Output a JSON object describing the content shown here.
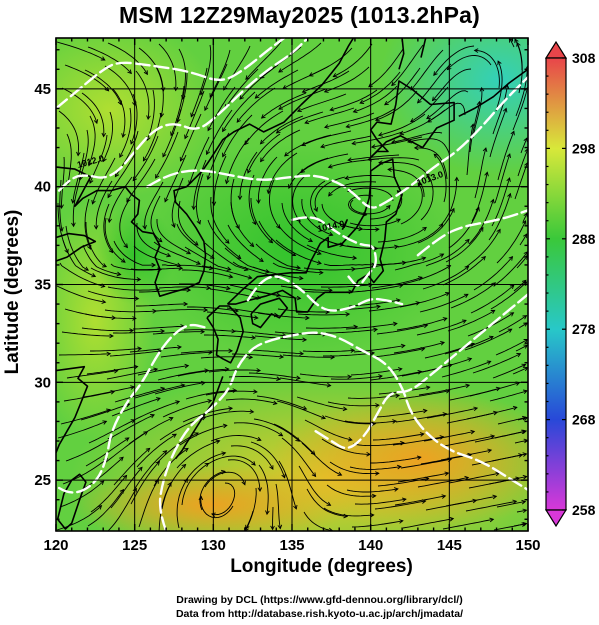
{
  "title": "MSM 12Z29May2025 (1013.2hPa)",
  "x_axis": {
    "label": "Longitude (degrees)",
    "range": [
      120,
      150
    ],
    "major_ticks": [
      "120",
      "125",
      "130",
      "135",
      "140",
      "145",
      "150"
    ]
  },
  "y_axis": {
    "label": "Latitude  (degrees)",
    "range": [
      22.4,
      47.6
    ],
    "major_ticks": [
      "25",
      "30",
      "35",
      "40",
      "45"
    ]
  },
  "colorbar": {
    "range": [
      258,
      308
    ],
    "labels": [
      "258",
      "268",
      "278",
      "288",
      "298",
      "308"
    ],
    "colors": {
      "308": "#e8454a",
      "298": "#d8e83a",
      "288": "#3ac83a",
      "278": "#28c8c8",
      "268": "#2848d8",
      "258": "#d838d8"
    }
  },
  "map": {
    "contour_color": "#ffffff",
    "streamline_color": "#000000",
    "coastline_color": "#000000",
    "gridline_color": "#000000",
    "contour_labels": [
      "1012.0",
      "1013.0",
      "1014.0"
    ]
  },
  "credits": {
    "line1": "Drawing by DCL (https://www.gfd-dennou.org/library/dcl/)",
    "line2": "Data from http://database.rish.kyoto-u.ac.jp/arch/jmadata/"
  }
}
